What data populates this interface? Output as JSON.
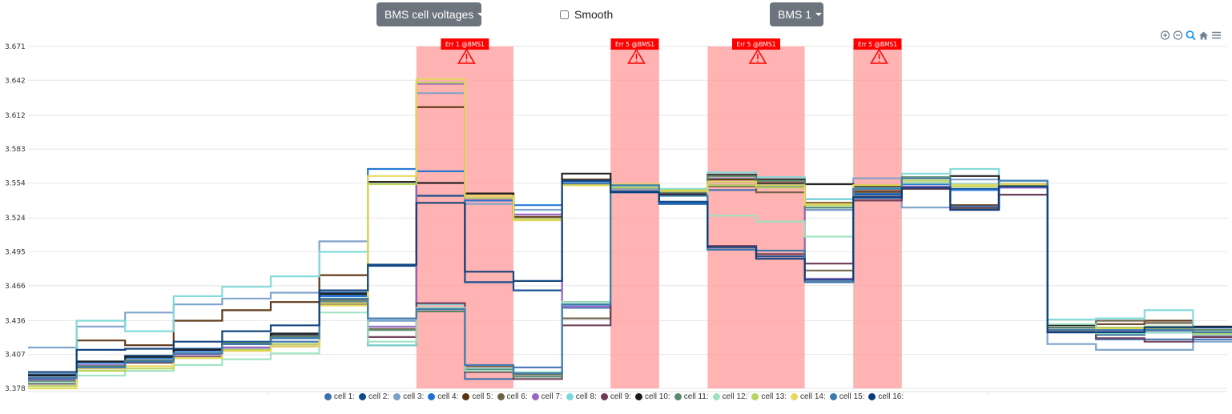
{
  "toolbar": {
    "metric_button": "BMS cell voltages",
    "smooth_label": "Smooth",
    "bms_button": "BMS 1"
  },
  "chart_data": {
    "type": "line",
    "step": true,
    "ylim": [
      3.378,
      3.671
    ],
    "yticks": [
      "3.671",
      "3.642",
      "3.612",
      "3.583",
      "3.554",
      "3.524",
      "3.495",
      "3.466",
      "3.436",
      "3.407",
      "3.378"
    ],
    "grid": true,
    "legend_position": "bottom",
    "error_bands": [
      {
        "label": "Err 1 @BMS1",
        "x_start": 8,
        "x_end": 10
      },
      {
        "label": "Err 5 @BMS1",
        "x_start": 12,
        "x_end": 13
      },
      {
        "label": "Err 5 @BMS1",
        "x_start": 14,
        "x_end": 16
      },
      {
        "label": "Err 5 @BMS1",
        "x_start": 17,
        "x_end": 18
      }
    ],
    "series": [
      {
        "name": "cell 1:",
        "color": "#3a6fb0",
        "values": [
          3.386,
          3.398,
          3.402,
          3.408,
          3.413,
          3.418,
          3.458,
          3.436,
          3.444,
          3.386,
          3.396,
          3.447,
          3.55,
          3.548,
          3.548,
          3.551,
          3.531,
          3.541,
          3.55,
          3.531,
          3.551,
          3.426,
          3.42,
          3.42,
          3.42
        ]
      },
      {
        "name": "cell 2:",
        "color": "#0d4a8c",
        "values": [
          3.39,
          3.401,
          3.406,
          3.412,
          3.418,
          3.424,
          3.46,
          3.483,
          3.543,
          3.469,
          3.462,
          3.553,
          3.547,
          3.536,
          3.497,
          3.491,
          3.469,
          3.544,
          3.549,
          3.549,
          3.551,
          3.428,
          3.424,
          3.426,
          3.424
        ]
      },
      {
        "name": "cell 3:",
        "color": "#7ba0c8",
        "values": [
          3.413,
          3.431,
          3.443,
          3.45,
          3.455,
          3.46,
          3.504,
          3.436,
          3.631,
          3.536,
          3.531,
          3.449,
          3.549,
          3.545,
          3.558,
          3.556,
          3.531,
          3.558,
          3.533,
          3.557,
          3.544,
          3.416,
          3.411,
          3.411,
          3.418
        ]
      },
      {
        "name": "cell 4:",
        "color": "#1a73d4",
        "values": [
          3.387,
          3.4,
          3.404,
          3.41,
          3.416,
          3.421,
          3.457,
          3.566,
          3.564,
          3.539,
          3.535,
          3.555,
          3.546,
          3.537,
          3.555,
          3.553,
          3.54,
          3.545,
          3.553,
          3.548,
          3.55,
          3.43,
          3.426,
          3.426,
          3.424
        ]
      },
      {
        "name": "cell 5:",
        "color": "#5a3210",
        "values": [
          3.385,
          3.419,
          3.415,
          3.436,
          3.445,
          3.452,
          3.475,
          3.415,
          3.619,
          3.545,
          3.525,
          3.557,
          3.551,
          3.544,
          3.557,
          3.554,
          3.537,
          3.547,
          3.554,
          3.535,
          3.551,
          3.43,
          3.433,
          3.436,
          3.428
        ]
      },
      {
        "name": "cell 6:",
        "color": "#6b6046",
        "values": [
          3.384,
          3.397,
          3.402,
          3.407,
          3.416,
          3.423,
          3.454,
          3.429,
          3.444,
          3.397,
          3.39,
          3.438,
          3.551,
          3.546,
          3.551,
          3.546,
          3.479,
          3.546,
          3.549,
          3.532,
          3.552,
          3.428,
          3.436,
          3.434,
          3.428
        ]
      },
      {
        "name": "cell 7:",
        "color": "#9966c4",
        "values": [
          3.385,
          3.398,
          3.402,
          3.407,
          3.413,
          3.416,
          3.452,
          3.431,
          3.639,
          3.54,
          3.527,
          3.448,
          3.55,
          3.547,
          3.552,
          3.552,
          3.472,
          3.549,
          3.551,
          3.531,
          3.55,
          3.426,
          3.427,
          3.427,
          3.423
        ]
      },
      {
        "name": "cell 8:",
        "color": "#7dd9d9",
        "values": [
          3.382,
          3.436,
          3.427,
          3.457,
          3.465,
          3.474,
          3.495,
          3.415,
          3.45,
          3.395,
          3.388,
          3.45,
          3.551,
          3.549,
          3.563,
          3.559,
          3.54,
          3.55,
          3.562,
          3.566,
          3.556,
          3.437,
          3.438,
          3.445,
          3.428
        ]
      },
      {
        "name": "cell 9:",
        "color": "#6b3a55",
        "values": [
          3.382,
          3.395,
          3.4,
          3.405,
          3.411,
          3.414,
          3.45,
          3.422,
          3.451,
          3.392,
          3.386,
          3.432,
          3.55,
          3.545,
          3.5,
          3.493,
          3.485,
          3.539,
          3.549,
          3.533,
          3.544,
          3.427,
          3.421,
          3.418,
          3.422
        ]
      },
      {
        "name": "cell 10:",
        "color": "#1a1a1a",
        "values": [
          3.389,
          3.401,
          3.405,
          3.411,
          3.417,
          3.425,
          3.459,
          3.555,
          3.554,
          3.545,
          3.523,
          3.562,
          3.551,
          3.544,
          3.561,
          3.557,
          3.553,
          3.551,
          3.558,
          3.56,
          3.553,
          3.432,
          3.43,
          3.43,
          3.431
        ]
      },
      {
        "name": "cell 11:",
        "color": "#5a8a6e",
        "values": [
          3.384,
          3.397,
          3.402,
          3.408,
          3.417,
          3.422,
          3.453,
          3.428,
          3.444,
          3.394,
          3.388,
          3.452,
          3.551,
          3.546,
          3.56,
          3.556,
          3.533,
          3.552,
          3.559,
          3.553,
          3.553,
          3.43,
          3.43,
          3.431,
          3.428
        ]
      },
      {
        "name": "cell 12:",
        "color": "#9de3c0",
        "values": [
          3.383,
          3.389,
          3.393,
          3.398,
          3.403,
          3.408,
          3.443,
          3.418,
          3.447,
          3.393,
          3.392,
          3.452,
          3.551,
          3.548,
          3.526,
          3.521,
          3.508,
          3.549,
          3.554,
          3.553,
          3.551,
          3.433,
          3.425,
          3.426,
          3.424
        ]
      },
      {
        "name": "cell 13:",
        "color": "#b8d45a",
        "values": [
          3.38,
          3.393,
          3.395,
          3.404,
          3.411,
          3.416,
          3.451,
          3.553,
          3.64,
          3.541,
          3.523,
          3.552,
          3.55,
          3.548,
          3.552,
          3.55,
          3.535,
          3.552,
          3.556,
          3.551,
          3.551,
          3.428,
          3.43,
          3.43,
          3.425
        ]
      },
      {
        "name": "cell 14:",
        "color": "#e6d85a",
        "values": [
          3.378,
          3.395,
          3.397,
          3.404,
          3.41,
          3.414,
          3.449,
          3.56,
          3.643,
          3.543,
          3.522,
          3.552,
          3.553,
          3.547,
          3.555,
          3.552,
          3.536,
          3.552,
          3.558,
          3.552,
          3.553,
          3.428,
          3.429,
          3.429,
          3.426
        ]
      },
      {
        "name": "cell 15:",
        "color": "#3a78ad",
        "values": [
          3.387,
          3.396,
          3.401,
          3.408,
          3.416,
          3.421,
          3.455,
          3.438,
          3.446,
          3.398,
          3.391,
          3.45,
          3.552,
          3.543,
          3.497,
          3.496,
          3.469,
          3.549,
          3.558,
          3.534,
          3.556,
          3.428,
          3.428,
          3.428,
          3.426
        ]
      },
      {
        "name": "cell 16:",
        "color": "#093d7a",
        "values": [
          3.392,
          3.411,
          3.412,
          3.418,
          3.427,
          3.432,
          3.462,
          3.484,
          3.537,
          3.478,
          3.47,
          3.556,
          3.546,
          3.538,
          3.499,
          3.489,
          3.471,
          3.542,
          3.55,
          3.531,
          3.551,
          3.426,
          3.426,
          3.43,
          3.43
        ]
      }
    ]
  }
}
